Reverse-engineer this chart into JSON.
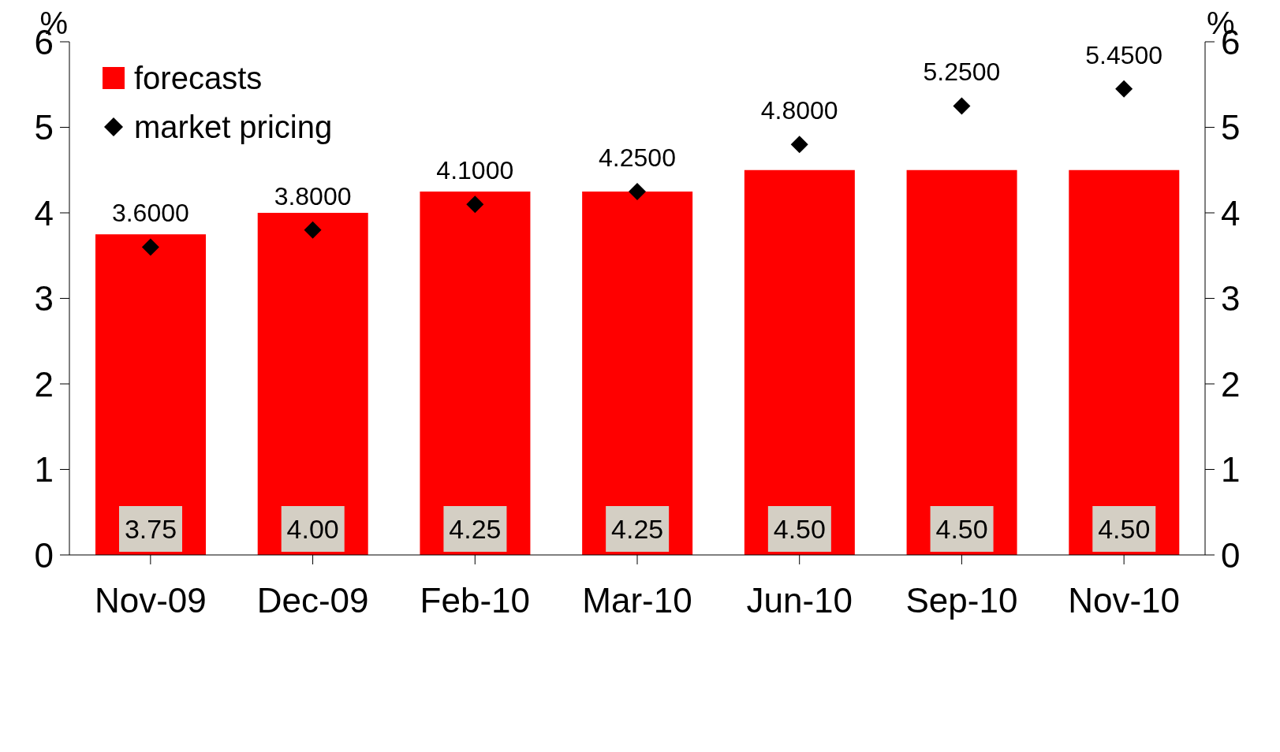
{
  "chart_data": {
    "type": "bar",
    "categories": [
      "Nov-09",
      "Dec-09",
      "Feb-10",
      "Mar-10",
      "Jun-10",
      "Sep-10",
      "Nov-10"
    ],
    "series": [
      {
        "name": "forecasts",
        "color": "#ff0000",
        "values": [
          3.75,
          4.0,
          4.25,
          4.25,
          4.5,
          4.5,
          4.5
        ],
        "value_labels": [
          "3.75",
          "4.00",
          "4.25",
          "4.25",
          "4.50",
          "4.50",
          "4.50"
        ]
      },
      {
        "name": "market pricing",
        "type": "scatter",
        "color": "#000000",
        "values": [
          3.6,
          3.8,
          4.1,
          4.25,
          4.8,
          5.25,
          5.45
        ],
        "value_labels": [
          "3.6000",
          "3.8000",
          "4.1000",
          "4.2500",
          "4.8000",
          "5.2500",
          "5.4500"
        ]
      }
    ],
    "marker": "diamond",
    "ylim": [
      0,
      6
    ],
    "yticks": [
      0,
      1,
      2,
      3,
      4,
      5,
      6
    ],
    "y2lim": [
      0,
      6
    ],
    "y2ticks": [
      0,
      1,
      2,
      3,
      4,
      5,
      6
    ],
    "ylabel": "%",
    "y2label": "%",
    "legend": "top left",
    "grid": false
  }
}
